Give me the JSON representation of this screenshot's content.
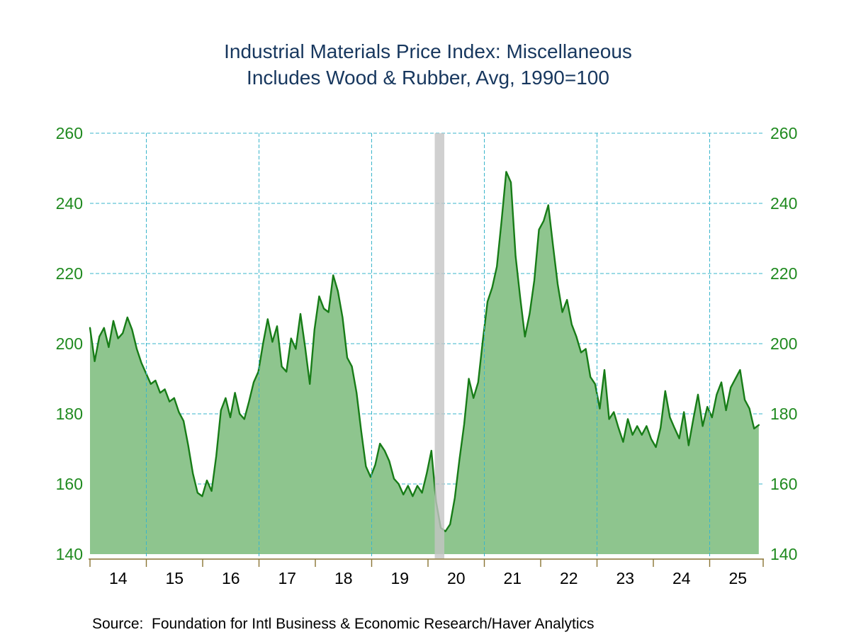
{
  "title": {
    "line1": "Industrial Materials Price Index: Miscellaneous",
    "line2": "Includes Wood & Rubber, Avg, 1990=100"
  },
  "source_note": "Source:  Foundation for Intl Business & Economic Research/Haver Analytics",
  "colors": {
    "title_text": "#17375E",
    "axis_label_green": "#1f8a1f",
    "x_label_black": "#000000",
    "gridline_teal": "#3ab5cb",
    "area_fill": "#8ec58e",
    "line_stroke": "#177c17",
    "axis_olive": "#8a7434",
    "recession_gray": "#c4c4c4",
    "background": "#ffffff"
  },
  "chart_data": {
    "type": "area",
    "title": "Industrial Materials Price Index: Miscellaneous, Includes Wood & Rubber, Avg, 1990=100",
    "x_start_year": 2014,
    "x_interval": "monthly",
    "x_tick_labels": [
      "14",
      "15",
      "16",
      "17",
      "18",
      "19",
      "20",
      "21",
      "22",
      "23",
      "24",
      "25"
    ],
    "y_tick_labels": [
      260,
      240,
      220,
      200,
      180,
      160,
      140
    ],
    "ylim": [
      140,
      260
    ],
    "xlim_years": [
      2014,
      2025.95
    ],
    "grid": "dashed-teal, horizontal every 20, vertical at odd years",
    "legend": "none",
    "vgrid_years": [
      2015,
      2017,
      2019,
      2021,
      2023,
      2025
    ],
    "recession_band": {
      "start_year": 2020.12,
      "end_year": 2020.29,
      "label": "recession-shading"
    },
    "series": [
      {
        "name": "Industrial Materials Price Index: Miscellaneous (Avg, 1990=100)",
        "values": [
          204.5,
          195,
          202,
          204.5,
          199,
          206.5,
          201.5,
          203,
          207.5,
          204,
          198.5,
          194.5,
          191.5,
          188.5,
          189.5,
          186,
          187,
          183.5,
          184.5,
          180.5,
          178,
          171,
          163,
          157.5,
          156.5,
          161,
          158,
          168,
          181,
          184.5,
          179,
          186,
          180,
          178.5,
          183.5,
          189,
          192,
          200,
          207,
          200.5,
          205,
          193.5,
          192,
          201.5,
          198.5,
          208.5,
          199,
          188.5,
          204,
          213.5,
          210,
          209,
          219.5,
          215,
          207.5,
          196,
          193.5,
          186,
          175,
          165,
          162,
          165.5,
          171.5,
          169.5,
          166.5,
          161.5,
          160,
          157,
          159.5,
          156.5,
          159.5,
          157.5,
          163,
          169.5,
          155,
          147.5,
          146.5,
          148.5,
          156,
          167,
          177,
          190,
          184.5,
          189,
          201,
          212,
          216,
          222,
          235,
          249,
          246,
          225,
          213,
          202,
          208.5,
          218,
          232.5,
          235,
          239.5,
          228,
          217,
          209,
          212.5,
          205.5,
          202,
          197.5,
          198.5,
          190.5,
          188.5,
          181.5,
          192.5,
          178.5,
          180.5,
          176,
          172,
          178.5,
          174,
          176.5,
          174,
          176.5,
          172.8,
          170.5,
          176,
          186.5,
          179,
          175.9,
          173,
          180.5,
          171,
          178.5,
          185.5,
          176.5,
          182,
          179,
          185.5,
          189,
          181,
          187.5,
          190,
          192.5,
          184,
          181.5,
          175.8,
          176.8
        ]
      }
    ]
  }
}
